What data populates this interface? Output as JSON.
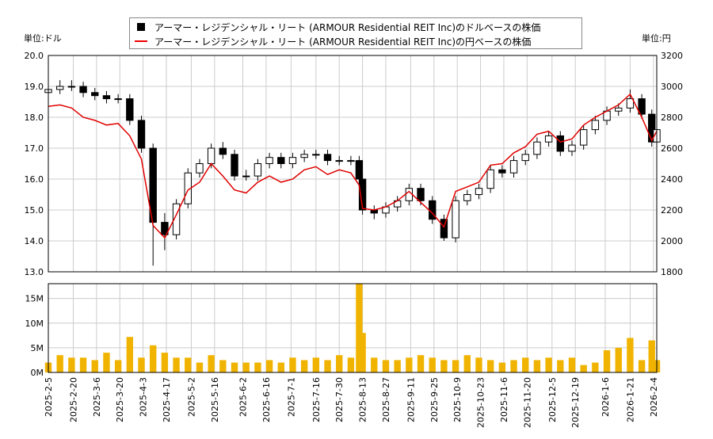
{
  "legend": {
    "usd_label": "アーマー・レジデンシャル・リート (ARMOUR Residential REIT Inc)のドルベースの株価",
    "jpy_label": "アーマー・レジデンシャル・リート (ARMOUR Residential REIT Inc)の円ベースの株価"
  },
  "units": {
    "left": "単位:ドル",
    "right": "単位:円"
  },
  "colors": {
    "up_candle": "#ffffff",
    "down_candle": "#000000",
    "jpy_line": "#e00000",
    "volume": "#f0b400",
    "grid": "#cccccc"
  },
  "chart_data": {
    "type": "candlestick+line+bar",
    "grid": true,
    "legend_placement": "top-center",
    "price_ylim": [
      13.0,
      20.0
    ],
    "price_ticks": [
      "13.0",
      "14.0",
      "15.0",
      "16.0",
      "17.0",
      "18.0",
      "19.0",
      "20.0"
    ],
    "jpy_ylim": [
      1800,
      3200
    ],
    "jpy_ticks": [
      "1800",
      "2000",
      "2200",
      "2400",
      "2600",
      "2800",
      "3000",
      "3200"
    ],
    "volume_ylim_m": [
      0,
      18
    ],
    "volume_ticks": [
      "0M",
      "5M",
      "10M",
      "15M"
    ],
    "x_ticks": [
      "2025-2-5",
      "2025-2-20",
      "2025-3-6",
      "2025-3-20",
      "2025-4-3",
      "2025-4-17",
      "2025-5-2",
      "2025-5-16",
      "2025-6-2",
      "2025-6-16",
      "2025-7-1",
      "2025-7-16",
      "2025-7-30",
      "2025-8-13",
      "2025-8-27",
      "2025-9-11",
      "2025-9-25",
      "2025-10-9",
      "2025-10-23",
      "2025-11-6",
      "2025-11-20",
      "2025-12-5",
      "2025-12-19",
      "2026-1-6",
      "2026-1-21",
      "2026-2-4"
    ],
    "dates": [
      "2025-02-05",
      "2025-02-12",
      "2025-02-19",
      "2025-02-26",
      "2025-03-05",
      "2025-03-12",
      "2025-03-19",
      "2025-03-26",
      "2025-04-02",
      "2025-04-09",
      "2025-04-16",
      "2025-04-23",
      "2025-04-30",
      "2025-05-07",
      "2025-05-14",
      "2025-05-21",
      "2025-05-28",
      "2025-06-04",
      "2025-06-11",
      "2025-06-18",
      "2025-06-25",
      "2025-07-02",
      "2025-07-09",
      "2025-07-16",
      "2025-07-23",
      "2025-07-30",
      "2025-08-06",
      "2025-08-11",
      "2025-08-13",
      "2025-08-20",
      "2025-08-27",
      "2025-09-03",
      "2025-09-10",
      "2025-09-17",
      "2025-09-24",
      "2025-10-01",
      "2025-10-08",
      "2025-10-15",
      "2025-10-22",
      "2025-10-29",
      "2025-11-05",
      "2025-11-12",
      "2025-11-19",
      "2025-11-26",
      "2025-12-03",
      "2025-12-10",
      "2025-12-17",
      "2025-12-24",
      "2025-12-31",
      "2026-01-07",
      "2026-01-14",
      "2026-01-21",
      "2026-01-28",
      "2026-02-03",
      "2026-02-06"
    ],
    "open": [
      18.8,
      18.9,
      19.0,
      19.0,
      18.8,
      18.7,
      18.6,
      18.6,
      17.9,
      17.0,
      14.6,
      14.2,
      15.2,
      16.2,
      16.5,
      17.0,
      16.8,
      16.1,
      16.1,
      16.5,
      16.7,
      16.5,
      16.7,
      16.8,
      16.8,
      16.6,
      16.6,
      16.6,
      16.0,
      15.0,
      14.9,
      15.1,
      15.3,
      15.7,
      15.3,
      14.7,
      14.1,
      15.3,
      15.5,
      15.7,
      16.3,
      16.2,
      16.6,
      16.8,
      17.2,
      17.4,
      16.9,
      17.1,
      17.6,
      17.9,
      18.2,
      18.3,
      18.6,
      18.1,
      17.2
    ],
    "high": [
      19.05,
      19.2,
      19.2,
      19.15,
      18.95,
      18.85,
      18.75,
      18.75,
      18.05,
      17.15,
      14.9,
      15.35,
      16.35,
      16.65,
      17.15,
      17.2,
      16.95,
      16.3,
      16.65,
      16.85,
      16.85,
      16.85,
      16.95,
      16.95,
      16.95,
      16.75,
      16.75,
      16.75,
      16.15,
      15.15,
      15.25,
      15.45,
      15.85,
      15.85,
      15.45,
      14.85,
      15.45,
      15.65,
      15.85,
      16.45,
      16.45,
      16.75,
      16.95,
      17.35,
      17.55,
      17.55,
      17.25,
      17.75,
      18.05,
      18.35,
      18.45,
      18.9,
      18.75,
      18.25,
      17.75
    ],
    "low": [
      18.65,
      18.75,
      18.85,
      18.65,
      18.55,
      18.45,
      18.45,
      17.75,
      16.85,
      13.2,
      13.7,
      14.05,
      15.05,
      16.05,
      16.35,
      16.65,
      15.95,
      15.95,
      15.95,
      16.35,
      16.35,
      16.35,
      16.55,
      16.65,
      16.45,
      16.45,
      16.45,
      15.85,
      14.85,
      14.7,
      14.75,
      14.95,
      15.15,
      15.15,
      14.55,
      14.0,
      13.95,
      15.15,
      15.35,
      15.55,
      16.05,
      16.05,
      16.45,
      16.65,
      17.05,
      16.75,
      16.75,
      16.95,
      17.45,
      17.75,
      18.05,
      18.15,
      17.95,
      17.05,
      17.05
    ],
    "close": [
      18.9,
      19.0,
      19.0,
      18.8,
      18.7,
      18.6,
      18.6,
      17.9,
      17.0,
      14.6,
      14.2,
      15.2,
      16.2,
      16.5,
      17.0,
      16.8,
      16.1,
      16.1,
      16.5,
      16.7,
      16.5,
      16.7,
      16.8,
      16.8,
      16.6,
      16.6,
      16.6,
      16.0,
      15.0,
      14.9,
      15.1,
      15.3,
      15.7,
      15.3,
      14.7,
      14.1,
      15.3,
      15.5,
      15.7,
      16.3,
      16.2,
      16.6,
      16.8,
      17.2,
      17.4,
      16.9,
      17.1,
      17.6,
      17.9,
      18.2,
      18.3,
      18.6,
      18.1,
      17.2,
      17.6
    ],
    "jpy_close": [
      2870,
      2880,
      2860,
      2800,
      2780,
      2750,
      2760,
      2680,
      2530,
      2100,
      2020,
      2170,
      2330,
      2380,
      2500,
      2420,
      2330,
      2310,
      2380,
      2420,
      2380,
      2400,
      2460,
      2480,
      2430,
      2460,
      2440,
      2360,
      2210,
      2200,
      2220,
      2260,
      2320,
      2250,
      2180,
      2090,
      2320,
      2350,
      2380,
      2490,
      2500,
      2570,
      2610,
      2690,
      2710,
      2640,
      2660,
      2750,
      2800,
      2840,
      2880,
      2950,
      2800,
      2650,
      2710
    ],
    "volume_m": [
      2.0,
      3.5,
      3.0,
      3.0,
      2.5,
      4.0,
      2.5,
      7.2,
      3.0,
      5.5,
      4.0,
      3.0,
      3.0,
      2.0,
      3.5,
      2.5,
      2.0,
      2.0,
      2.0,
      2.5,
      2.0,
      3.0,
      2.5,
      3.0,
      2.5,
      3.5,
      3.0,
      18.0,
      8.0,
      3.0,
      2.5,
      2.5,
      3.0,
      3.5,
      3.0,
      2.5,
      2.5,
      3.5,
      3.0,
      2.5,
      2.0,
      2.5,
      3.0,
      2.5,
      3.0,
      2.5,
      3.0,
      1.5,
      2.0,
      4.5,
      5.0,
      7.0,
      2.5,
      6.5,
      2.5
    ]
  }
}
